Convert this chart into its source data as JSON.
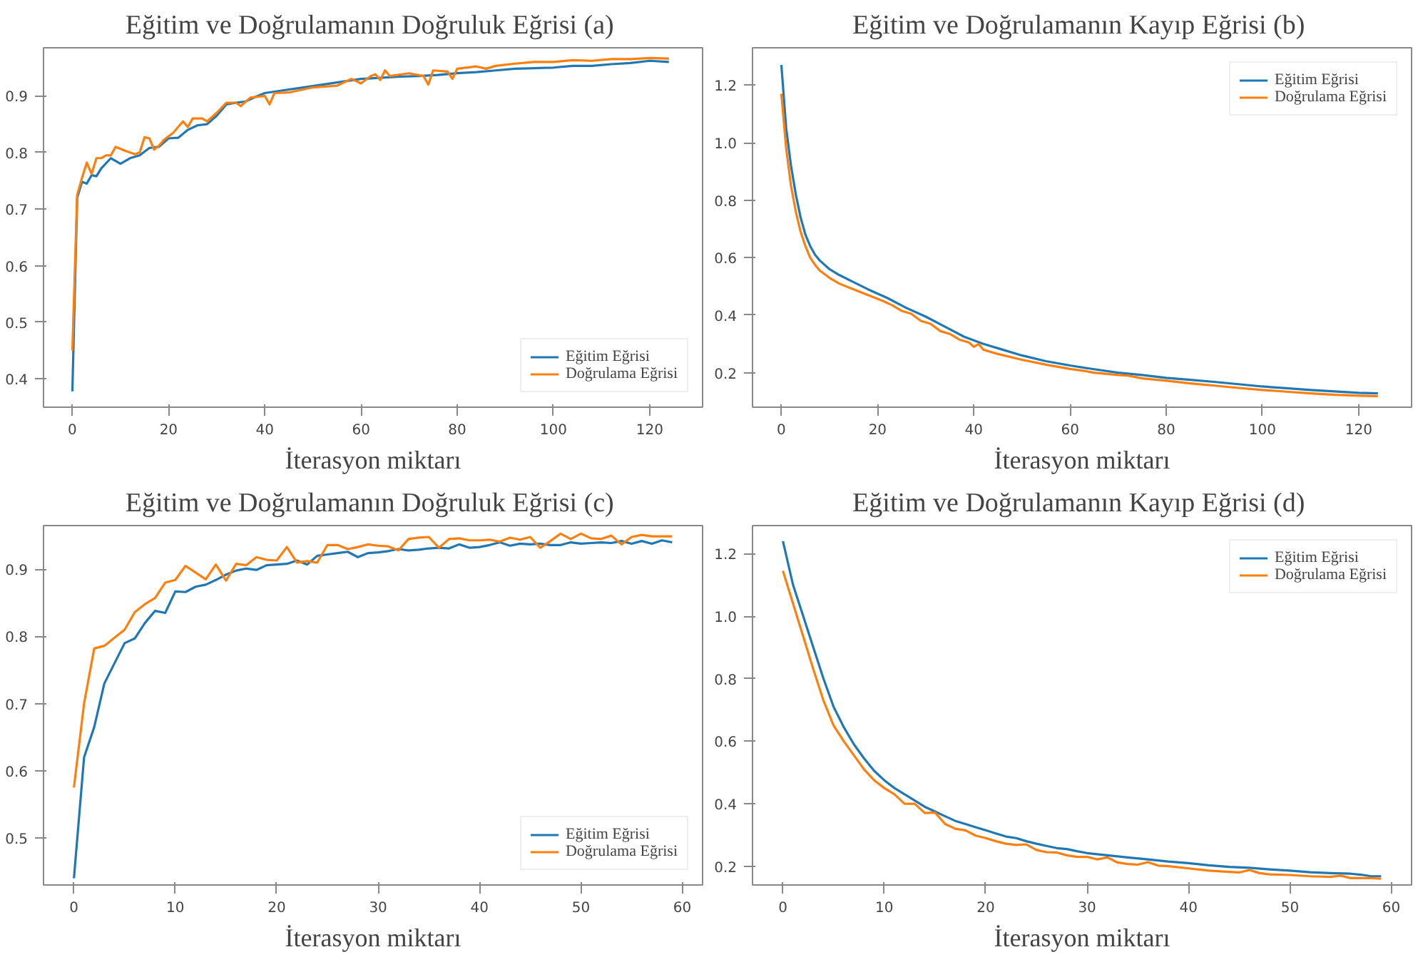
{
  "chart_data": [
    {
      "type": "line",
      "title": "Eğitim ve Doğrulamanın Doğruluk Eğrisi  (a)",
      "xlabel": "İterasyon miktarı",
      "xlim": [
        -6,
        131
      ],
      "ylim": [
        0.35,
        0.985
      ],
      "xticks": [
        0,
        20,
        40,
        60,
        80,
        100,
        120
      ],
      "yticks": [
        0.4,
        0.5,
        0.6,
        0.7,
        0.8,
        0.9
      ],
      "legend": "bottom right",
      "series": [
        {
          "name": "Eğitim Eğrisi",
          "color": "#1f77b4",
          "x": [
            0,
            1,
            2,
            3,
            4,
            5,
            6,
            8,
            10,
            12,
            14,
            16,
            18,
            20,
            22,
            24,
            26,
            28,
            30,
            32,
            34,
            36,
            38,
            40,
            44,
            48,
            52,
            56,
            60,
            64,
            68,
            72,
            76,
            80,
            84,
            88,
            92,
            96,
            100,
            104,
            108,
            112,
            116,
            120,
            124
          ],
          "values": [
            0.378,
            0.72,
            0.748,
            0.745,
            0.76,
            0.758,
            0.772,
            0.79,
            0.78,
            0.79,
            0.795,
            0.808,
            0.81,
            0.825,
            0.826,
            0.84,
            0.848,
            0.85,
            0.865,
            0.885,
            0.888,
            0.89,
            0.898,
            0.905,
            0.91,
            0.915,
            0.92,
            0.925,
            0.93,
            0.932,
            0.934,
            0.935,
            0.937,
            0.94,
            0.942,
            0.945,
            0.948,
            0.949,
            0.95,
            0.953,
            0.953,
            0.956,
            0.958,
            0.962,
            0.96
          ]
        },
        {
          "name": "Doğrulama Eğrisi",
          "color": "#ff7f0e",
          "x": [
            0,
            1,
            2,
            3,
            4,
            5,
            6,
            7,
            8,
            9,
            11,
            13,
            14,
            15,
            16,
            17,
            18,
            19,
            21,
            23,
            24,
            25,
            27,
            28,
            30,
            32,
            34,
            35,
            37,
            40,
            41,
            42,
            45,
            50,
            55,
            58,
            60,
            62,
            63,
            64,
            65,
            66,
            70,
            73,
            74,
            75,
            78,
            79,
            80,
            84,
            86,
            88,
            92,
            96,
            100,
            104,
            108,
            112,
            116,
            120,
            124
          ],
          "values": [
            0.45,
            0.725,
            0.755,
            0.782,
            0.762,
            0.79,
            0.79,
            0.795,
            0.795,
            0.81,
            0.803,
            0.797,
            0.8,
            0.827,
            0.825,
            0.805,
            0.812,
            0.822,
            0.835,
            0.855,
            0.845,
            0.86,
            0.86,
            0.855,
            0.87,
            0.888,
            0.888,
            0.882,
            0.897,
            0.9,
            0.885,
            0.905,
            0.906,
            0.915,
            0.918,
            0.93,
            0.922,
            0.935,
            0.938,
            0.928,
            0.945,
            0.935,
            0.94,
            0.935,
            0.92,
            0.945,
            0.943,
            0.93,
            0.948,
            0.952,
            0.948,
            0.953,
            0.957,
            0.96,
            0.96,
            0.963,
            0.962,
            0.965,
            0.965,
            0.967,
            0.966
          ]
        }
      ]
    },
    {
      "type": "line",
      "title": "Eğitim ve Doğrulamanın Kayıp Eğrisi  (b)",
      "xlabel": "İterasyon miktarı",
      "xlim": [
        -6,
        131
      ],
      "ylim": [
        0.08,
        1.33
      ],
      "xticks": [
        0,
        20,
        40,
        60,
        80,
        100,
        120
      ],
      "yticks": [
        0.2,
        0.4,
        0.6,
        0.8,
        {
          "value": 1.0,
          "label": "1.0"
        },
        1.2
      ],
      "legend": "top right",
      "series": [
        {
          "name": "Eğitim Eğrisi",
          "color": "#1f77b4",
          "x": [
            0,
            1,
            2,
            3,
            4,
            5,
            6,
            7,
            8,
            10,
            12,
            15,
            18,
            22,
            26,
            30,
            34,
            38,
            42,
            46,
            50,
            55,
            60,
            65,
            70,
            75,
            80,
            85,
            90,
            95,
            100,
            105,
            110,
            115,
            120,
            124
          ],
          "values": [
            1.27,
            1.05,
            0.92,
            0.82,
            0.74,
            0.68,
            0.64,
            0.61,
            0.59,
            0.56,
            0.54,
            0.515,
            0.49,
            0.46,
            0.425,
            0.395,
            0.36,
            0.325,
            0.3,
            0.28,
            0.26,
            0.24,
            0.225,
            0.212,
            0.2,
            0.192,
            0.182,
            0.175,
            0.168,
            0.16,
            0.152,
            0.146,
            0.14,
            0.135,
            0.13,
            0.128
          ]
        },
        {
          "name": "Doğrulama Eğrisi",
          "color": "#ff7f0e",
          "x": [
            0,
            1,
            2,
            3,
            4,
            5,
            6,
            7,
            8,
            10,
            12,
            15,
            18,
            21,
            23,
            25,
            27,
            29,
            31,
            33,
            35,
            37,
            39,
            40,
            41,
            42,
            45,
            50,
            55,
            60,
            63,
            65,
            70,
            72,
            75,
            80,
            85,
            90,
            95,
            100,
            105,
            110,
            115,
            120,
            124
          ],
          "values": [
            1.17,
            0.98,
            0.85,
            0.76,
            0.69,
            0.64,
            0.6,
            0.575,
            0.555,
            0.53,
            0.51,
            0.49,
            0.47,
            0.45,
            0.435,
            0.415,
            0.405,
            0.38,
            0.37,
            0.345,
            0.335,
            0.315,
            0.305,
            0.29,
            0.3,
            0.28,
            0.265,
            0.245,
            0.228,
            0.213,
            0.206,
            0.2,
            0.192,
            0.19,
            0.18,
            0.172,
            0.163,
            0.155,
            0.147,
            0.14,
            0.134,
            0.128,
            0.123,
            0.12,
            0.118
          ]
        }
      ]
    },
    {
      "type": "line",
      "title": "Eğitim ve Doğrulamanın Doğruluk Eğrisi  (c)",
      "xlabel": "İterasyon miktarı",
      "xlim": [
        -3,
        62
      ],
      "ylim": [
        0.43,
        0.965
      ],
      "xticks": [
        0,
        10,
        20,
        30,
        40,
        50,
        60
      ],
      "yticks": [
        0.5,
        0.6,
        0.7,
        0.8,
        0.9
      ],
      "legend": "bottom right",
      "series": [
        {
          "name": "Eğitim Eğrisi",
          "color": "#1f77b4",
          "x": [
            0,
            1,
            2,
            3,
            4,
            5,
            6,
            7,
            8,
            9,
            10,
            11,
            12,
            13,
            14,
            15,
            16,
            17,
            18,
            19,
            20,
            21,
            22,
            23,
            24,
            25,
            26,
            27,
            28,
            29,
            30,
            31,
            32,
            33,
            34,
            35,
            36,
            37,
            38,
            39,
            40,
            41,
            42,
            43,
            44,
            45,
            46,
            47,
            48,
            49,
            50,
            51,
            52,
            53,
            54,
            55,
            56,
            57,
            58,
            59
          ],
          "values": [
            0.44,
            0.62,
            0.665,
            0.73,
            0.76,
            0.79,
            0.797,
            0.82,
            0.838,
            0.835,
            0.867,
            0.866,
            0.874,
            0.877,
            0.884,
            0.892,
            0.898,
            0.901,
            0.899,
            0.906,
            0.907,
            0.908,
            0.913,
            0.907,
            0.92,
            0.922,
            0.924,
            0.926,
            0.918,
            0.924,
            0.925,
            0.927,
            0.93,
            0.928,
            0.929,
            0.931,
            0.932,
            0.931,
            0.937,
            0.932,
            0.933,
            0.936,
            0.94,
            0.935,
            0.938,
            0.937,
            0.938,
            0.936,
            0.936,
            0.94,
            0.938,
            0.939,
            0.94,
            0.939,
            0.942,
            0.938,
            0.942,
            0.938,
            0.943,
            0.94
          ]
        },
        {
          "name": "Doğrulama Eğrisi",
          "color": "#ff7f0e",
          "x": [
            0,
            1,
            2,
            3,
            4,
            5,
            6,
            7,
            8,
            9,
            10,
            11,
            12,
            13,
            14,
            15,
            16,
            17,
            18,
            19,
            20,
            21,
            22,
            23,
            24,
            25,
            26,
            27,
            28,
            29,
            30,
            31,
            32,
            33,
            34,
            35,
            36,
            37,
            38,
            39,
            40,
            41,
            42,
            43,
            44,
            45,
            46,
            47,
            48,
            49,
            50,
            51,
            52,
            53,
            54,
            55,
            56,
            57,
            58,
            59
          ],
          "values": [
            0.575,
            0.7,
            0.782,
            0.786,
            0.798,
            0.81,
            0.836,
            0.848,
            0.857,
            0.88,
            0.884,
            0.905,
            0.895,
            0.885,
            0.907,
            0.883,
            0.908,
            0.906,
            0.918,
            0.914,
            0.913,
            0.933,
            0.91,
            0.912,
            0.91,
            0.936,
            0.936,
            0.93,
            0.933,
            0.937,
            0.935,
            0.934,
            0.928,
            0.945,
            0.947,
            0.948,
            0.932,
            0.945,
            0.946,
            0.943,
            0.943,
            0.944,
            0.941,
            0.947,
            0.944,
            0.948,
            0.932,
            0.942,
            0.953,
            0.945,
            0.953,
            0.946,
            0.945,
            0.95,
            0.937,
            0.948,
            0.951,
            0.949,
            0.949,
            0.949
          ]
        }
      ]
    },
    {
      "type": "line",
      "title": "Eğitim ve Doğrulamanın Kayıp Eğrisi  (d)",
      "xlabel": "İterasyon miktarı",
      "xlim": [
        -3,
        62
      ],
      "ylim": [
        0.14,
        1.29
      ],
      "xticks": [
        0,
        10,
        20,
        30,
        40,
        50,
        60
      ],
      "yticks": [
        0.2,
        0.4,
        0.6,
        0.8,
        {
          "value": 1.0,
          "label": "1.0"
        },
        1.2
      ],
      "legend": "top right",
      "series": [
        {
          "name": "Eğitim Eğrisi",
          "color": "#1f77b4",
          "x": [
            0,
            1,
            2,
            3,
            4,
            5,
            6,
            7,
            8,
            9,
            10,
            11,
            12,
            13,
            14,
            15,
            16,
            17,
            18,
            19,
            20,
            21,
            22,
            23,
            24,
            25,
            26,
            27,
            28,
            29,
            30,
            32,
            34,
            36,
            38,
            40,
            42,
            44,
            46,
            48,
            50,
            52,
            54,
            56,
            57,
            58,
            59
          ],
          "values": [
            1.24,
            1.1,
            1.0,
            0.9,
            0.8,
            0.71,
            0.645,
            0.59,
            0.545,
            0.505,
            0.475,
            0.45,
            0.43,
            0.41,
            0.39,
            0.375,
            0.36,
            0.345,
            0.335,
            0.325,
            0.315,
            0.305,
            0.295,
            0.29,
            0.28,
            0.272,
            0.265,
            0.258,
            0.255,
            0.248,
            0.242,
            0.235,
            0.228,
            0.222,
            0.215,
            0.21,
            0.203,
            0.198,
            0.195,
            0.19,
            0.186,
            0.181,
            0.178,
            0.176,
            0.173,
            0.168,
            0.168
          ]
        },
        {
          "name": "Doğrulama Eğrisi",
          "color": "#ff7f0e",
          "x": [
            0,
            1,
            2,
            3,
            4,
            5,
            6,
            7,
            8,
            9,
            10,
            11,
            12,
            13,
            14,
            15,
            16,
            17,
            18,
            19,
            20,
            21,
            22,
            23,
            24,
            25,
            26,
            27,
            28,
            29,
            30,
            31,
            32,
            33,
            34,
            35,
            36,
            37,
            38,
            40,
            42,
            44,
            45,
            46,
            47,
            48,
            50,
            52,
            54,
            55,
            56,
            58,
            59
          ],
          "values": [
            1.145,
            1.04,
            0.935,
            0.83,
            0.73,
            0.65,
            0.6,
            0.555,
            0.51,
            0.475,
            0.45,
            0.43,
            0.4,
            0.4,
            0.37,
            0.372,
            0.335,
            0.32,
            0.315,
            0.298,
            0.29,
            0.28,
            0.272,
            0.268,
            0.27,
            0.252,
            0.245,
            0.244,
            0.235,
            0.23,
            0.23,
            0.222,
            0.228,
            0.212,
            0.207,
            0.205,
            0.213,
            0.202,
            0.2,
            0.193,
            0.186,
            0.182,
            0.18,
            0.188,
            0.178,
            0.174,
            0.172,
            0.168,
            0.166,
            0.17,
            0.162,
            0.162,
            0.16
          ]
        }
      ]
    }
  ]
}
